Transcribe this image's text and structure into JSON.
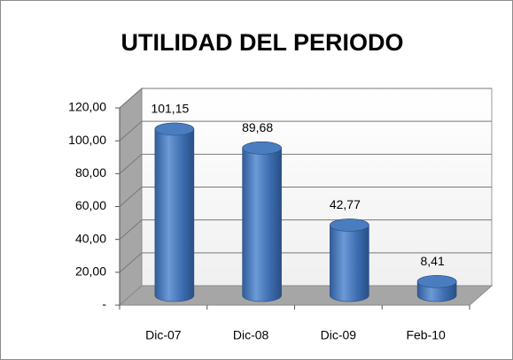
{
  "chart_data": {
    "type": "bar",
    "title": "UTILIDAD DEL PERIODO",
    "categories": [
      "Dic-07",
      "Dic-08",
      "Dic-09",
      "Feb-10"
    ],
    "values": [
      101.15,
      89.68,
      42.77,
      8.41
    ],
    "value_labels": [
      "101,15",
      "89,68",
      "42,77",
      "8,41"
    ],
    "color": "#4f81bd",
    "ylim": [
      0,
      120
    ],
    "yticks": [
      {
        "value": 0,
        "label": "-"
      },
      {
        "value": 20,
        "label": "20,00"
      },
      {
        "value": 40,
        "label": "40,00"
      },
      {
        "value": 60,
        "label": "60,00"
      },
      {
        "value": 80,
        "label": "80,00"
      },
      {
        "value": 100,
        "label": "100,00"
      },
      {
        "value": 120,
        "label": "120,00"
      }
    ],
    "grid": true
  }
}
